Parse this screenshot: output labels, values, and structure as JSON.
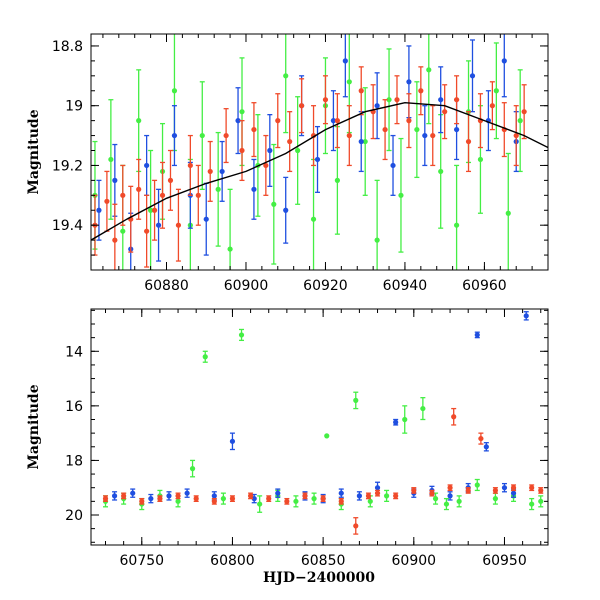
{
  "chart_data": [
    {
      "type": "scatter",
      "title": "",
      "xlabel": "",
      "ylabel": "Magnitude",
      "xlim": [
        60861,
        60976
      ],
      "ylim": [
        19.55,
        18.76
      ],
      "y_inverted": true,
      "x_ticks": [
        60880,
        60900,
        60920,
        60940,
        60960
      ],
      "x_tick_labels": [
        "60880",
        "60900",
        "60920",
        "60940",
        "60960"
      ],
      "y_ticks": [
        18.8,
        19.0,
        19.2,
        19.4
      ],
      "y_tick_labels": [
        "18.8",
        "19",
        "19.2",
        "19.4"
      ],
      "model_curve": {
        "name": "fit",
        "color": "#000000",
        "x": [
          60861,
          60870,
          60880,
          60890,
          60900,
          60910,
          60920,
          60930,
          60940,
          60950,
          60960,
          60970,
          60976
        ],
        "y": [
          19.45,
          19.38,
          19.31,
          19.26,
          19.22,
          19.16,
          19.08,
          19.02,
          18.99,
          19.0,
          19.05,
          19.1,
          19.14
        ]
      },
      "series": [
        {
          "name": "green",
          "color": "#44ee44",
          "x": [
            60862,
            60866,
            60869,
            60873,
            60876,
            60879,
            60882,
            60886,
            60889,
            60893,
            60896,
            60899,
            60903,
            60907,
            60910,
            60913,
            60917,
            60920,
            60923,
            60926,
            60930,
            60933,
            60936,
            60939,
            60943,
            60946,
            60949,
            60953,
            60956,
            60959,
            60963,
            60966,
            60969
          ],
          "y": [
            19.3,
            19.18,
            19.42,
            19.05,
            19.35,
            19.22,
            18.95,
            19.4,
            19.1,
            19.28,
            19.48,
            19.02,
            19.2,
            19.33,
            18.9,
            19.15,
            19.38,
            19.0,
            19.25,
            18.92,
            19.12,
            19.45,
            18.98,
            19.3,
            19.08,
            18.88,
            19.22,
            19.4,
            19.02,
            19.18,
            18.95,
            19.36,
            19.05
          ],
          "err": [
            0.18,
            0.2,
            0.22,
            0.17,
            0.2,
            0.16,
            0.2,
            0.22,
            0.18,
            0.19,
            0.2,
            0.18,
            0.17,
            0.2,
            0.19,
            0.18,
            0.2,
            0.16,
            0.18,
            0.17,
            0.18,
            0.2,
            0.17,
            0.19,
            0.16,
            0.18,
            0.19,
            0.2,
            0.17,
            0.18,
            0.16,
            0.2,
            0.17
          ]
        },
        {
          "name": "blue",
          "color": "#1f4fe0",
          "x": [
            60863,
            60867,
            60871,
            60875,
            60878,
            60882,
            60886,
            60890,
            60894,
            60898,
            60902,
            60906,
            60910,
            60914,
            60918,
            60922,
            60925,
            60929,
            60933,
            60937,
            60941,
            60945,
            60949,
            60953,
            60957,
            60961,
            60965,
            60968
          ],
          "y": [
            19.35,
            19.25,
            19.48,
            19.2,
            19.4,
            19.1,
            19.3,
            19.38,
            19.22,
            19.05,
            19.28,
            19.15,
            19.35,
            19.0,
            19.18,
            19.05,
            18.85,
            19.12,
            19.0,
            19.2,
            18.92,
            19.1,
            18.98,
            19.08,
            18.9,
            19.05,
            18.85,
            19.12
          ],
          "err": [
            0.1,
            0.12,
            0.12,
            0.1,
            0.12,
            0.1,
            0.11,
            0.12,
            0.1,
            0.11,
            0.1,
            0.12,
            0.11,
            0.1,
            0.11,
            0.1,
            0.12,
            0.1,
            0.11,
            0.1,
            0.12,
            0.1,
            0.11,
            0.1,
            0.12,
            0.1,
            0.12,
            0.1
          ]
        },
        {
          "name": "red",
          "color": "#f04a2a",
          "x": [
            60862,
            60865,
            60867,
            60869,
            60871,
            60873,
            60875,
            60877,
            60879,
            60881,
            60883,
            60886,
            60888,
            60891,
            60895,
            60899,
            60902,
            60905,
            60908,
            60911,
            60914,
            60917,
            60920,
            60923,
            60926,
            60929,
            60932,
            60935,
            60938,
            60941,
            60944,
            60947,
            60950,
            60953,
            60956,
            60959,
            60962,
            60965,
            60968,
            60970
          ],
          "y": [
            19.4,
            19.32,
            19.45,
            19.3,
            19.38,
            19.28,
            19.42,
            19.35,
            19.3,
            19.25,
            19.4,
            19.2,
            19.3,
            19.22,
            19.1,
            19.15,
            19.08,
            19.2,
            19.05,
            19.12,
            19.0,
            19.1,
            18.98,
            19.05,
            19.1,
            18.95,
            19.02,
            19.08,
            18.98,
            19.05,
            18.95,
            19.1,
            19.02,
            18.98,
            19.12,
            19.05,
            19.0,
            19.08,
            19.1,
            19.02
          ],
          "err": [
            0.1,
            0.1,
            0.12,
            0.1,
            0.11,
            0.1,
            0.12,
            0.1,
            0.11,
            0.1,
            0.12,
            0.1,
            0.1,
            0.1,
            0.09,
            0.1,
            0.09,
            0.1,
            0.09,
            0.1,
            0.09,
            0.1,
            0.08,
            0.09,
            0.1,
            0.08,
            0.09,
            0.1,
            0.08,
            0.09,
            0.08,
            0.1,
            0.09,
            0.08,
            0.1,
            0.09,
            0.08,
            0.09,
            0.1,
            0.09
          ]
        }
      ]
    },
    {
      "type": "scatter",
      "title": "",
      "xlabel": "HJD−2400000",
      "ylabel": "Magnitude",
      "xlim": [
        60722,
        60974
      ],
      "ylim": [
        21.1,
        12.45
      ],
      "y_inverted": true,
      "x_ticks": [
        60750,
        60800,
        60850,
        60900,
        60950
      ],
      "x_tick_labels": [
        "60750",
        "60800",
        "60850",
        "60900",
        "60950"
      ],
      "y_ticks": [
        14,
        16,
        18,
        20
      ],
      "y_tick_labels": [
        "14",
        "16",
        "18",
        "20"
      ],
      "series": [
        {
          "name": "green",
          "color": "#44ee44",
          "x": [
            60730,
            60740,
            60750,
            60760,
            60770,
            60778,
            60785,
            60795,
            60805,
            60815,
            60825,
            60835,
            60845,
            60852,
            60860,
            60868,
            60876,
            60885,
            60895,
            60905,
            60912,
            60918,
            60925,
            60935,
            60945,
            60955,
            60965,
            60970
          ],
          "y": [
            19.5,
            19.4,
            19.6,
            19.3,
            19.5,
            18.3,
            14.2,
            19.4,
            13.4,
            19.6,
            19.3,
            19.5,
            19.4,
            17.1,
            19.6,
            15.8,
            19.5,
            19.3,
            16.5,
            16.1,
            19.4,
            19.6,
            19.5,
            18.9,
            19.4,
            19.3,
            19.6,
            19.5
          ],
          "err": [
            0.2,
            0.2,
            0.2,
            0.2,
            0.2,
            0.3,
            0.2,
            0.2,
            0.2,
            0.3,
            0.2,
            0.2,
            0.2,
            0.0,
            0.2,
            0.3,
            0.2,
            0.2,
            0.5,
            0.4,
            0.2,
            0.2,
            0.2,
            0.2,
            0.2,
            0.2,
            0.2,
            0.2
          ]
        },
        {
          "name": "blue",
          "color": "#1f4fe0",
          "x": [
            60735,
            60745,
            60755,
            60765,
            60775,
            60790,
            60800,
            60812,
            60825,
            60840,
            60850,
            60860,
            60870,
            60880,
            60890,
            60900,
            60910,
            60920,
            60930,
            60935,
            60940,
            60950,
            60955,
            60962
          ],
          "y": [
            19.3,
            19.2,
            19.4,
            19.3,
            19.2,
            19.3,
            17.3,
            19.4,
            19.2,
            19.3,
            19.4,
            19.2,
            19.3,
            19.0,
            16.6,
            19.2,
            19.1,
            19.3,
            19.0,
            13.4,
            17.5,
            19.0,
            19.2,
            12.7
          ],
          "err": [
            0.15,
            0.15,
            0.15,
            0.15,
            0.15,
            0.15,
            0.3,
            0.15,
            0.15,
            0.15,
            0.15,
            0.15,
            0.15,
            0.2,
            0.1,
            0.15,
            0.15,
            0.15,
            0.15,
            0.1,
            0.15,
            0.15,
            0.15,
            0.15
          ]
        },
        {
          "name": "red",
          "color": "#f04a2a",
          "x": [
            60730,
            60740,
            60750,
            60760,
            60770,
            60780,
            60790,
            60800,
            60810,
            60820,
            60830,
            60840,
            60850,
            60860,
            60868,
            60875,
            60880,
            60890,
            60900,
            60910,
            60920,
            60922,
            60930,
            60937,
            60945,
            60955,
            60965,
            60970
          ],
          "y": [
            19.4,
            19.3,
            19.5,
            19.4,
            19.3,
            19.4,
            19.5,
            19.4,
            19.3,
            19.4,
            19.5,
            19.3,
            19.4,
            19.5,
            20.4,
            19.3,
            19.2,
            19.3,
            19.1,
            19.2,
            19.0,
            16.4,
            19.1,
            17.2,
            19.1,
            19.0,
            19.0,
            19.1
          ],
          "err": [
            0.1,
            0.1,
            0.1,
            0.1,
            0.1,
            0.1,
            0.1,
            0.1,
            0.1,
            0.1,
            0.1,
            0.1,
            0.1,
            0.1,
            0.3,
            0.1,
            0.1,
            0.1,
            0.1,
            0.1,
            0.1,
            0.3,
            0.1,
            0.2,
            0.1,
            0.1,
            0.1,
            0.1
          ]
        }
      ]
    }
  ]
}
